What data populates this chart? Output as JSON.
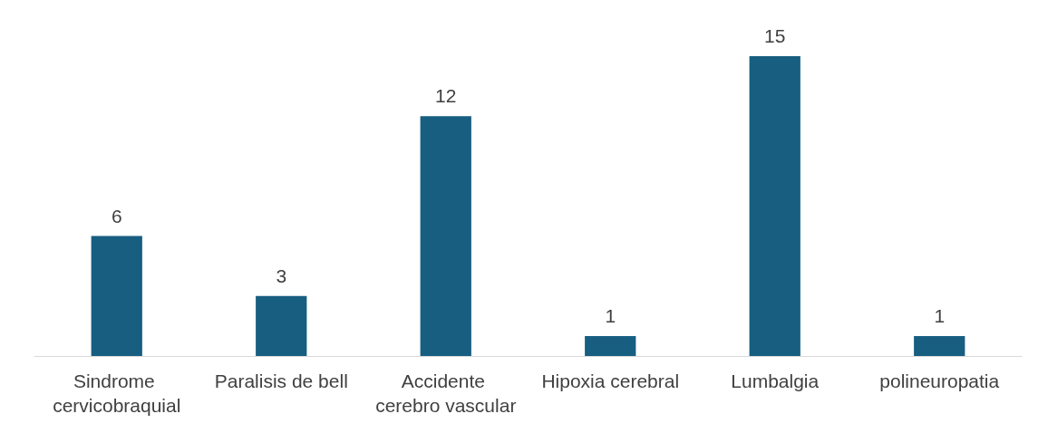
{
  "chart_data": {
    "type": "bar",
    "categories": [
      "Sindrome cervicobraquial",
      "Paralisis de bell",
      "Accidente cerebro vascular",
      "Hipoxia cerebral",
      "Lumbalgia",
      "polineuropatia"
    ],
    "values": [
      6,
      3,
      12,
      1,
      15,
      1
    ],
    "color": "#175e81",
    "data_labels": true,
    "grid": false
  }
}
